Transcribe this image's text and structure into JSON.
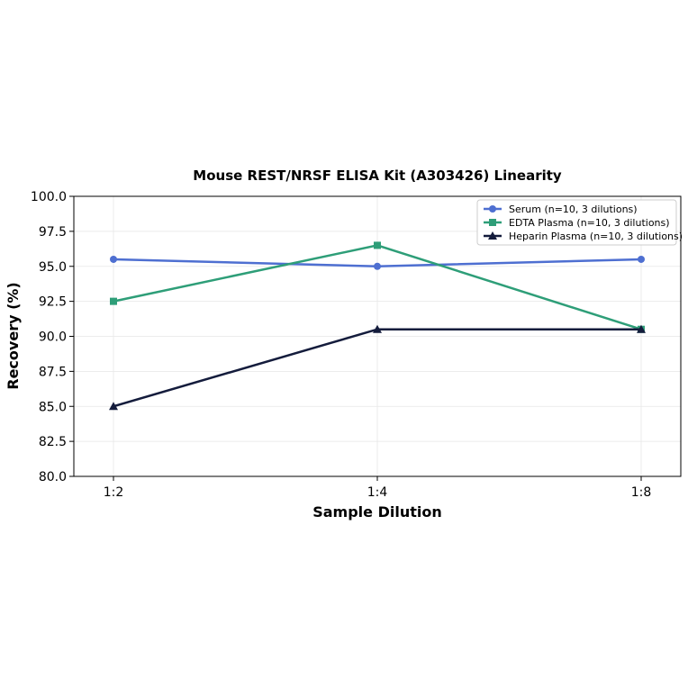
{
  "chart_data": {
    "type": "line",
    "title": "Mouse REST/NRSF ELISA Kit (A303426) Linearity",
    "xlabel": "Sample Dilution",
    "ylabel": "Recovery (%)",
    "categories": [
      "1:2",
      "1:4",
      "1:8"
    ],
    "ylim": [
      80.0,
      100.0
    ],
    "yticks": [
      "80.0",
      "82.5",
      "85.0",
      "87.5",
      "90.0",
      "92.5",
      "95.0",
      "97.5",
      "100.0"
    ],
    "grid": true,
    "legend_position": "top-right",
    "series": [
      {
        "name": "Serum (n=10, 3 dilutions)",
        "values": [
          95.5,
          95.0,
          95.5
        ],
        "color": "#4e6fd1",
        "marker": "circle"
      },
      {
        "name": "EDTA Plasma (n=10, 3 dilutions)",
        "values": [
          92.5,
          96.5,
          90.5
        ],
        "color": "#2e9e78",
        "marker": "square"
      },
      {
        "name": "Heparin Plasma (n=10, 3 dilutions)",
        "values": [
          85.0,
          90.5,
          90.5
        ],
        "color": "#141c3c",
        "marker": "triangle"
      }
    ]
  }
}
